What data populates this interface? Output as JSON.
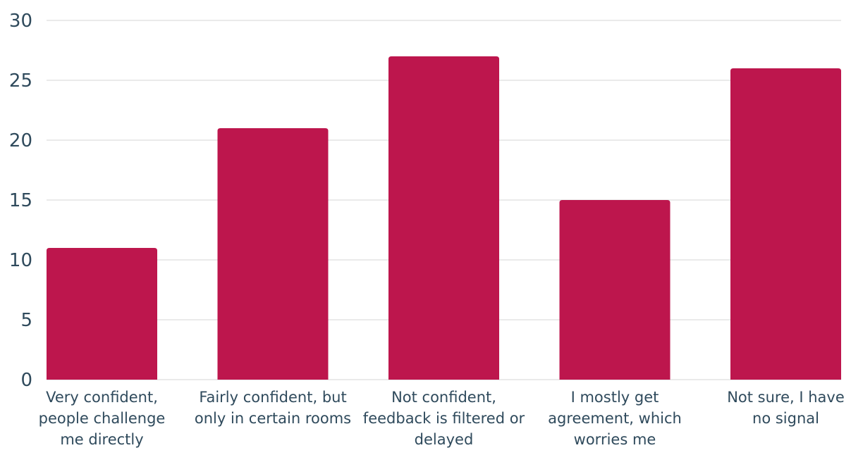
{
  "chart_data": {
    "type": "bar",
    "title": "",
    "xlabel": "",
    "ylabel": "",
    "ylim": [
      0,
      30
    ],
    "yticks": [
      0,
      5,
      10,
      15,
      20,
      25,
      30
    ],
    "grid": true,
    "bar_color": "#bd164d",
    "categories": [
      [
        "Very confident,",
        "people challenge",
        "me directly"
      ],
      [
        "Fairly confident, but",
        "only in certain rooms"
      ],
      [
        "Not confident,",
        "feedback is filtered or",
        "delayed"
      ],
      [
        "I mostly get",
        "agreement, which",
        "worries me"
      ],
      [
        "Not sure, I have",
        "no signal"
      ]
    ],
    "values": [
      11,
      21,
      27,
      15,
      26
    ]
  }
}
